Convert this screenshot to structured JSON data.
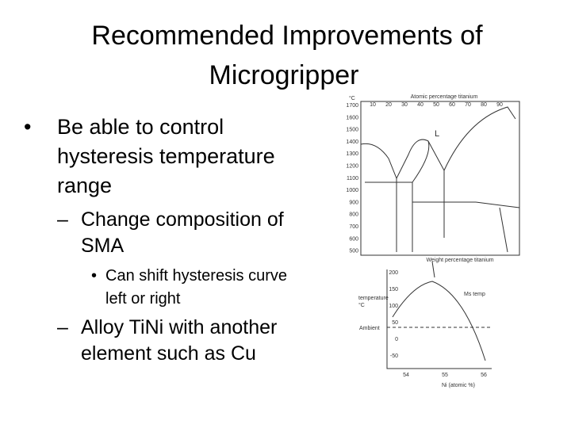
{
  "title": {
    "lines": [
      "Recommended Improvements of",
      "Microgripper"
    ]
  },
  "bullets": [
    {
      "lines": [
        "Be able to control",
        "hysteresis temperature",
        "range"
      ]
    },
    {
      "lines": [
        "Change composition of",
        "SMA"
      ]
    },
    {
      "lines": [
        "Can shift hysteresis curve",
        "left or right"
      ]
    },
    {
      "lines": [
        "Alloy TiNi with another",
        "element such as Cu"
      ]
    }
  ],
  "figure": {
    "phase_diagram": {
      "top_axis_label": "Atomic percentage titanium",
      "bottom_axis_label": "Weight percentage titanium",
      "unit": "°C",
      "region": "L",
      "yticks": [
        "1700",
        "1600",
        "1500",
        "1400",
        "1300",
        "1200",
        "1100",
        "1000",
        "900",
        "800",
        "700",
        "600",
        "500"
      ],
      "xticks": [
        "10",
        "20",
        "30",
        "40",
        "50",
        "60",
        "70",
        "80",
        "90"
      ]
    },
    "ms_chart": {
      "y_axis_label": [
        "temperature",
        "°C"
      ],
      "curve_label": "Ms temp",
      "reference_label": "Ambient",
      "x_axis_label": "Ni (atomic %)",
      "yticks": [
        "200",
        "150",
        "100",
        "50",
        "0",
        "-50"
      ],
      "xticks": [
        "54",
        "55",
        "56"
      ]
    }
  }
}
